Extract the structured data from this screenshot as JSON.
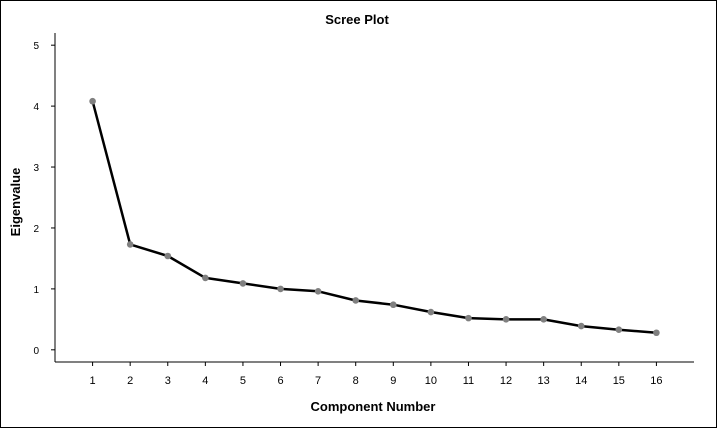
{
  "chart_data": {
    "type": "line",
    "title": "Scree Plot",
    "xlabel": "Component Number",
    "ylabel": "Eigenvalue",
    "x": [
      1,
      2,
      3,
      4,
      5,
      6,
      7,
      8,
      9,
      10,
      11,
      12,
      13,
      14,
      15,
      16
    ],
    "x_tick_labels": [
      "1",
      "2",
      "3",
      "4",
      "5",
      "6",
      "7",
      "8",
      "9",
      "10",
      "11",
      "12",
      "13",
      "14",
      "15",
      "16"
    ],
    "y_ticks": [
      0,
      1,
      2,
      3,
      4,
      5
    ],
    "y_tick_labels": [
      "0",
      "1",
      "2",
      "3",
      "4",
      "5"
    ],
    "xlim": [
      0,
      17
    ],
    "ylim": [
      -0.2,
      5.2
    ],
    "grid": false,
    "legend": "none",
    "series": [
      {
        "values": [
          4.08,
          1.73,
          1.54,
          1.18,
          1.09,
          1.0,
          0.96,
          0.81,
          0.74,
          0.62,
          0.52,
          0.5,
          0.5,
          0.39,
          0.33,
          0.28
        ],
        "line_color": "#000000",
        "marker_color": "#808080"
      }
    ]
  }
}
